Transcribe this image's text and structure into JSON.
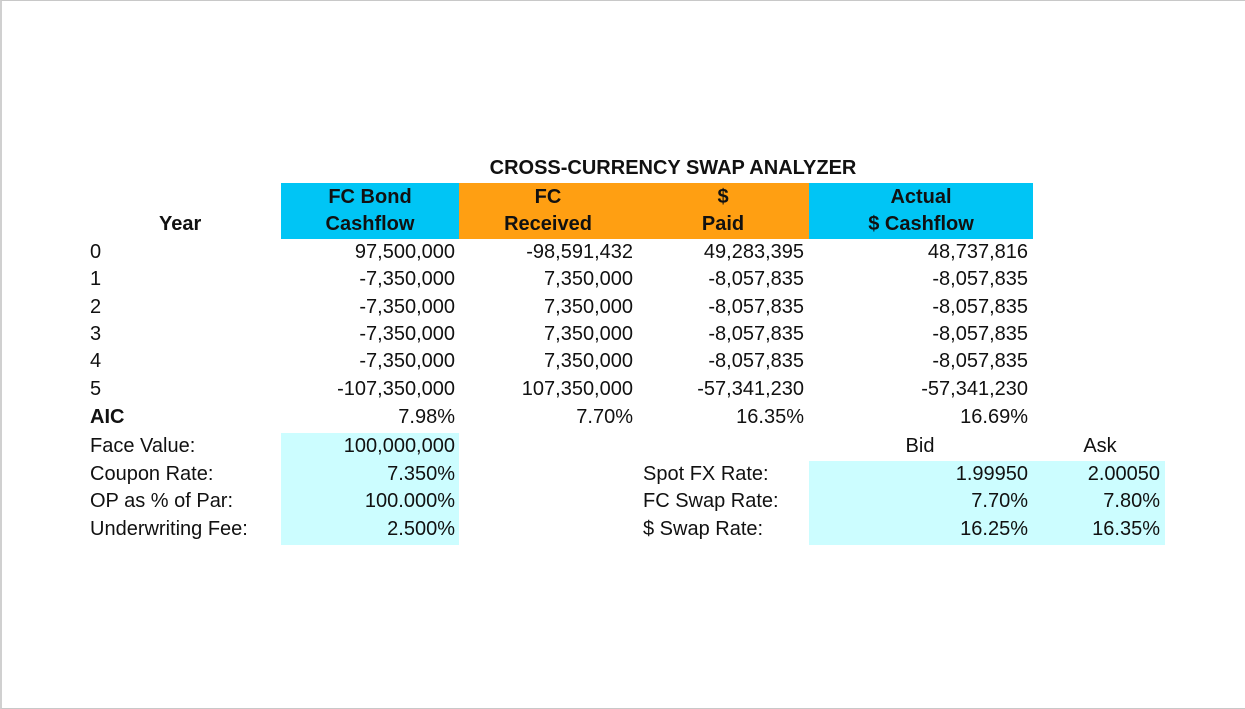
{
  "title": "CROSS-CURRENCY SWAP ANALYZER",
  "headers": {
    "year": "Year",
    "fc_bond": [
      "FC Bond",
      "Cashflow"
    ],
    "fc_received": [
      "FC",
      "Received"
    ],
    "usd_paid": [
      "$",
      "Paid"
    ],
    "actual_cf": [
      "Actual",
      "$ Cashflow"
    ]
  },
  "rows": [
    {
      "year": "0",
      "fc_bond": "97,500,000",
      "fc_received": "-98,591,432",
      "usd_paid": "49,283,395",
      "actual": "48,737,816"
    },
    {
      "year": "1",
      "fc_bond": "-7,350,000",
      "fc_received": "7,350,000",
      "usd_paid": "-8,057,835",
      "actual": "-8,057,835"
    },
    {
      "year": "2",
      "fc_bond": "-7,350,000",
      "fc_received": "7,350,000",
      "usd_paid": "-8,057,835",
      "actual": "-8,057,835"
    },
    {
      "year": "3",
      "fc_bond": "-7,350,000",
      "fc_received": "7,350,000",
      "usd_paid": "-8,057,835",
      "actual": "-8,057,835"
    },
    {
      "year": "4",
      "fc_bond": "-7,350,000",
      "fc_received": "7,350,000",
      "usd_paid": "-8,057,835",
      "actual": "-8,057,835"
    },
    {
      "year": "5",
      "fc_bond": "-107,350,000",
      "fc_received": "107,350,000",
      "usd_paid": "-57,341,230",
      "actual": "-57,341,230"
    }
  ],
  "aic": {
    "label": "AIC",
    "fc_bond": "7.98%",
    "fc_received": "7.70%",
    "usd_paid": "16.35%",
    "actual": "16.69%"
  },
  "inputs": [
    {
      "label": "Face Value:",
      "value": "100,000,000"
    },
    {
      "label": "Coupon Rate:",
      "value": "7.350%"
    },
    {
      "label": "OP as % of Par:",
      "value": "100.000%"
    },
    {
      "label": "Underwriting Fee:",
      "value": "2.500%"
    }
  ],
  "rates": {
    "bid_label": "Bid",
    "ask_label": "Ask",
    "items": [
      {
        "label": "Spot FX Rate:",
        "bid": "1.99950",
        "ask": "2.00050"
      },
      {
        "label": "FC Swap Rate:",
        "bid": "7.70%",
        "ask": "7.80%"
      },
      {
        "label": "$ Swap Rate:",
        "bid": "16.25%",
        "ask": "16.35%"
      }
    ]
  },
  "colors": {
    "header_blue": "#00c5f5",
    "header_orange": "#ff9f12",
    "input_teal": "#ccfdff"
  }
}
